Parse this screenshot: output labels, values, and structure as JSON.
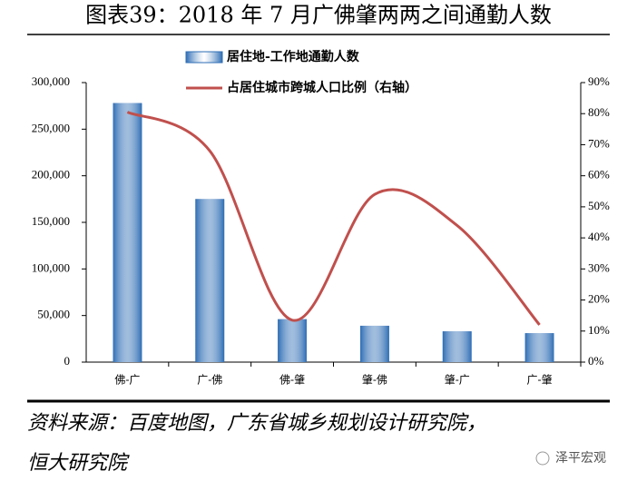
{
  "chart_data": {
    "type": "bar",
    "title": "图表39：2018 年 7 月广佛肇两两之间通勤人数",
    "categories": [
      "佛-广",
      "广-佛",
      "佛-肇",
      "肇-佛",
      "肇-广",
      "广-肇"
    ],
    "series": [
      {
        "name": "居住地-工作地通勤人数",
        "type": "bar",
        "color": "#2e6db4",
        "values": [
          278000,
          175000,
          46000,
          39000,
          33000,
          31000
        ]
      },
      {
        "name": "占居住城市跨城人口比例（右轴）",
        "type": "line",
        "axis": "y2",
        "color": "#c0504d",
        "values": [
          80.5,
          68,
          13.5,
          54,
          44,
          12
        ]
      }
    ],
    "ylim": [
      0,
      300000
    ],
    "yticks": [
      0,
      {
        "value": 50000,
        "label": "50,000"
      },
      {
        "value": 100000,
        "label": "100,000"
      },
      {
        "value": 150000,
        "label": "150,000"
      },
      {
        "value": 200000,
        "label": "200,000"
      },
      {
        "value": 250000,
        "label": "250,000"
      },
      {
        "value": 300000,
        "label": "300,000"
      }
    ],
    "y2lim": [
      0,
      90
    ],
    "y2ticks": [
      {
        "value": 0,
        "label": "0%"
      },
      {
        "value": 10,
        "label": "10%"
      },
      {
        "value": 20,
        "label": "20%"
      },
      {
        "value": 30,
        "label": "30%"
      },
      {
        "value": 40,
        "label": "40%"
      },
      {
        "value": 50,
        "label": "50%"
      },
      {
        "value": 60,
        "label": "60%"
      },
      {
        "value": 70,
        "label": "70%"
      },
      {
        "value": 80,
        "label": "80%"
      },
      {
        "value": 90,
        "label": "90%"
      }
    ],
    "grid": false,
    "source": [
      "资料来源：百度地图，广东省城乡规划设计研究院，",
      "恒大研究院"
    ],
    "watermark": "泽平宏观"
  }
}
